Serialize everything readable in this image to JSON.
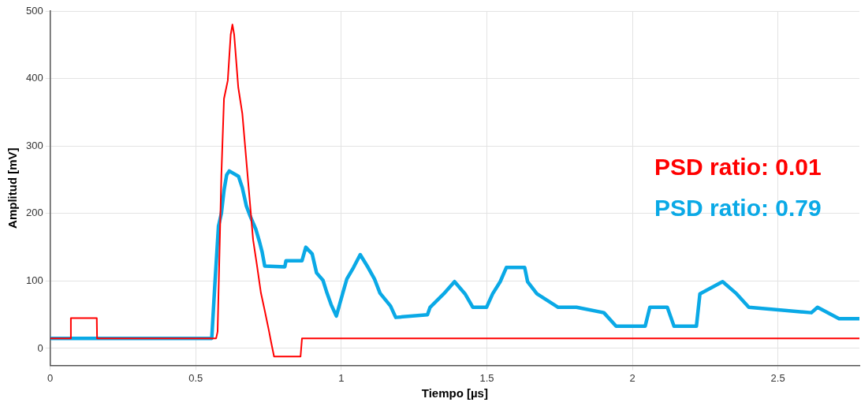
{
  "chart_data": {
    "type": "line",
    "xlabel": "Tiempo [µs]",
    "ylabel": "Amplitud [mV]",
    "xlim": [
      0,
      2.78
    ],
    "ylim": [
      -25,
      500
    ],
    "xticks": [
      0,
      0.5,
      1,
      1.5,
      2,
      2.5
    ],
    "yticks": [
      0,
      100,
      200,
      300,
      400,
      500
    ],
    "grid": true,
    "legend": "right",
    "marker": "none",
    "line_style": "solid",
    "series": [
      {
        "name": "PSD ratio: 0.01",
        "color": "#ff0000",
        "x": [
          0,
          0.07,
          0.071,
          0.16,
          0.161,
          0.57,
          0.575,
          0.588,
          0.597,
          0.61,
          0.62,
          0.626,
          0.632,
          0.646,
          0.66,
          0.678,
          0.697,
          0.71,
          0.724,
          0.737,
          0.751,
          0.76,
          0.769,
          0.86,
          0.865,
          2.78
        ],
        "values": [
          15,
          15,
          45,
          45,
          15,
          15,
          25,
          257,
          370,
          397,
          465,
          480,
          465,
          387,
          348,
          257,
          161,
          124,
          82,
          56,
          27,
          7,
          -12,
          -12,
          15,
          15
        ]
      },
      {
        "name": "PSD ratio: 0.79",
        "color": "#0aa9e6",
        "x": [
          0,
          0.555,
          0.565,
          0.578,
          0.588,
          0.597,
          0.606,
          0.615,
          0.647,
          0.66,
          0.674,
          0.687,
          0.706,
          0.719,
          0.728,
          0.737,
          0.806,
          0.81,
          0.865,
          0.878,
          0.9,
          0.915,
          0.937,
          0.951,
          0.965,
          0.983,
          1.005,
          1.019,
          1.042,
          1.065,
          1.092,
          1.114,
          1.133,
          1.169,
          1.187,
          1.296,
          1.305,
          1.352,
          1.389,
          1.425,
          1.452,
          1.499,
          1.52,
          1.546,
          1.567,
          1.63,
          1.64,
          1.672,
          1.745,
          1.808,
          1.902,
          1.944,
          2.044,
          2.06,
          2.12,
          2.143,
          2.22,
          2.232,
          2.31,
          2.358,
          2.4,
          2.615,
          2.636,
          2.71,
          2.78
        ],
        "values": [
          15,
          15,
          90,
          181,
          200,
          234,
          257,
          263,
          255,
          238,
          211,
          196,
          177,
          158,
          143,
          122,
          121,
          130,
          130,
          150,
          140,
          112,
          101,
          82,
          65,
          48,
          82,
          103,
          120,
          139,
          120,
          103,
          82,
          63,
          46,
          50,
          61,
          81,
          99,
          81,
          61,
          61,
          81,
          99,
          120,
          120,
          99,
          81,
          61,
          61,
          53,
          33,
          33,
          61,
          61,
          33,
          33,
          81,
          99,
          81,
          61,
          53,
          61,
          44,
          44
        ]
      }
    ]
  }
}
